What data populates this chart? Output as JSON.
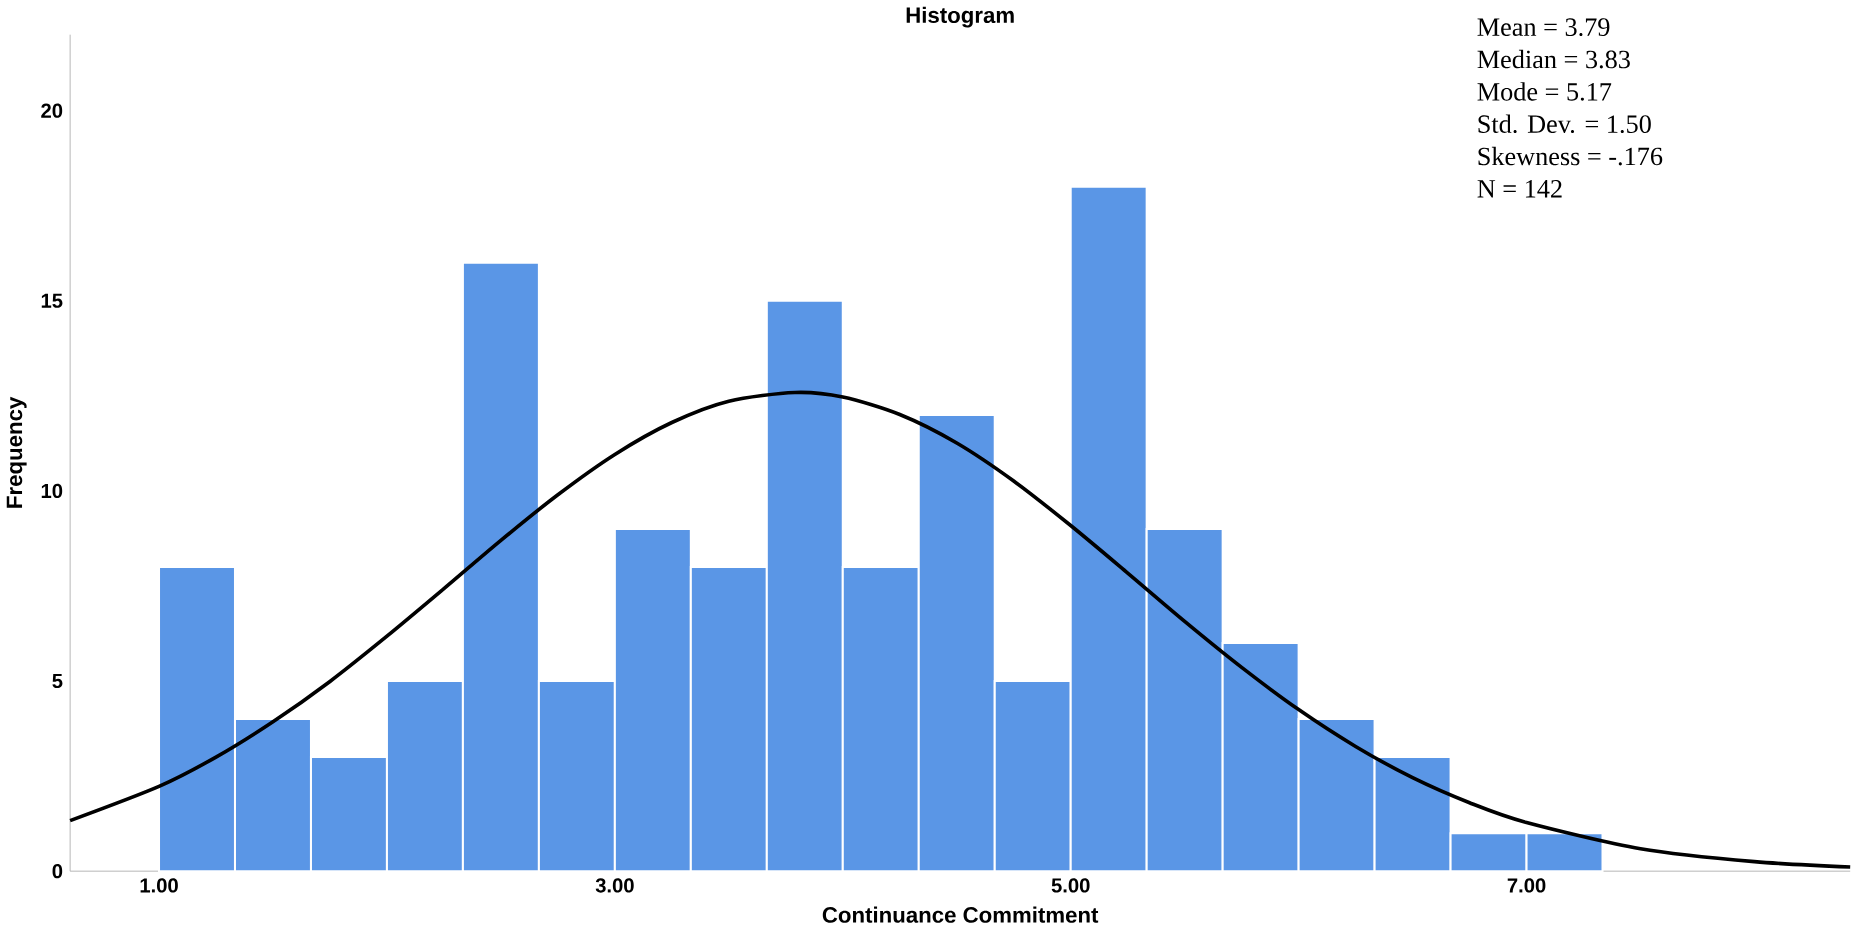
{
  "chart_data": {
    "type": "histogram",
    "title": "Histogram",
    "xlabel": "Continuance Commitment",
    "ylabel": "Frequency",
    "bins": [
      1,
      1.3333,
      1.6667,
      2,
      2.3333,
      2.6667,
      3,
      3.3333,
      3.6667,
      4,
      4.3333,
      4.6667,
      5,
      5.3333,
      5.6667,
      6,
      6.3333,
      6.6667,
      7,
      7.3333
    ],
    "values": [
      8,
      4,
      3,
      5,
      16,
      5,
      9,
      8,
      15,
      8,
      12,
      5,
      18,
      9,
      6,
      4,
      3,
      1,
      1
    ],
    "color": "#5a96e6",
    "series": [
      {
        "type": "line",
        "color": "#000000",
        "x": [
          0.61,
          1.0,
          1.25,
          1.5,
          1.75,
          2.0,
          2.25,
          2.5,
          2.75,
          3.0,
          3.25,
          3.5,
          3.79,
          4.0,
          4.25,
          4.5,
          4.75,
          5.0,
          5.25,
          5.5,
          5.75,
          6.0,
          6.25,
          6.5,
          6.75,
          7.0,
          7.5,
          8.0,
          8.42
        ],
        "values": [
          1.33,
          2.23,
          3.0,
          3.93,
          4.99,
          6.18,
          7.43,
          8.7,
          9.9,
          10.96,
          11.8,
          12.36,
          12.59,
          12.47,
          12.01,
          11.26,
          10.26,
          9.09,
          7.84,
          6.57,
          5.36,
          4.25,
          3.28,
          2.46,
          1.8,
          1.28,
          0.59,
          0.25,
          0.11
        ]
      }
    ],
    "xlim": [
      0.61,
      8.42
    ],
    "ylim": [
      0,
      22
    ],
    "xticks": [
      {
        "value": 1,
        "label": "1.00"
      },
      {
        "value": 3,
        "label": "3.00"
      },
      {
        "value": 5,
        "label": "5.00"
      },
      {
        "value": 7,
        "label": "7.00"
      }
    ],
    "yticks": [
      0,
      5,
      10,
      15,
      20
    ],
    "annotations": [
      "Mean = 3.79",
      "Median = 3.83",
      "Mode = 5.17",
      "Std. Dev. = 1.50",
      "Skewness = -.176",
      "N = 142"
    ]
  }
}
